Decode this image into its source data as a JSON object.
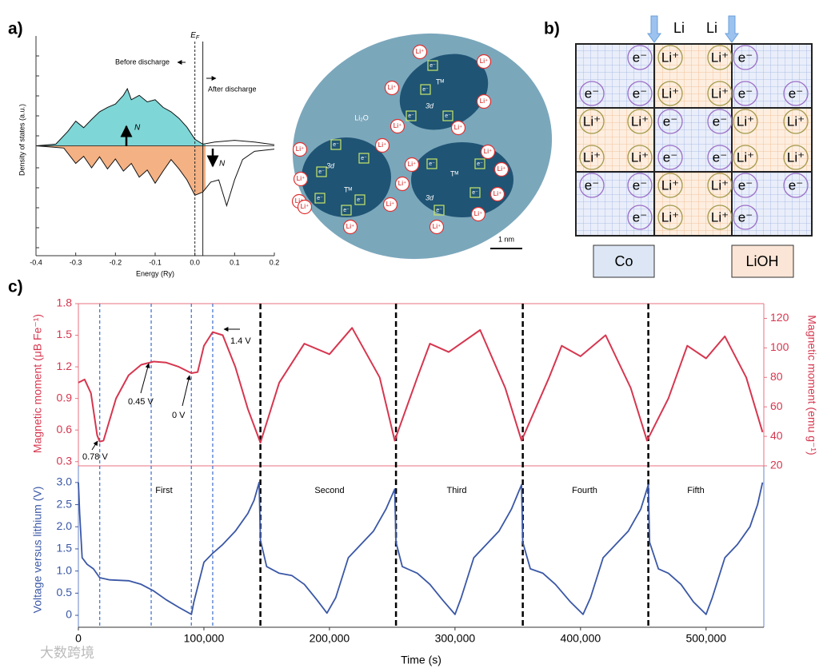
{
  "panel_labels": [
    "a)",
    "b)",
    "c)"
  ],
  "dos_chart": {
    "type": "line",
    "x_label": "Energy (Ry)",
    "y_label": "Density of states (a.u.)",
    "xlim": [
      -0.4,
      0.2
    ],
    "xticks": [
      -0.4,
      -0.3,
      -0.2,
      -0.1,
      {
        "value": 0,
        "label": "0.0"
      },
      0.1,
      0.2
    ],
    "ylim": [
      -10,
      10
    ],
    "fermi_label": "E",
    "fermi_sub": "F",
    "fermi_energy": 0,
    "discharged_energy": 0.02,
    "before_discharge": "Before discharge",
    "after_discharge": "After discharge",
    "spin_label": "N",
    "spin_up": {
      "color": "#7fd6d6",
      "x": [
        -0.4,
        -0.35,
        -0.32,
        -0.3,
        -0.28,
        -0.26,
        -0.24,
        -0.22,
        -0.2,
        -0.18,
        -0.17,
        -0.16,
        -0.14,
        -0.12,
        -0.1,
        -0.08,
        -0.06,
        -0.04,
        -0.02,
        0,
        0.02,
        0.05,
        0.1,
        0.15,
        0.2
      ],
      "values": [
        0,
        0.15,
        1.3,
        2.25,
        1.65,
        2.4,
        3.1,
        3.5,
        3.8,
        4.6,
        5.2,
        4.2,
        4.6,
        4.0,
        4.2,
        3.5,
        3.1,
        2.5,
        1.7,
        0.6,
        0.15,
        0.35,
        0.5,
        0.35,
        0.1
      ]
    },
    "spin_down": {
      "color": "#f4b183",
      "x": [
        -0.4,
        -0.33,
        -0.3,
        -0.28,
        -0.26,
        -0.24,
        -0.22,
        -0.2,
        -0.18,
        -0.16,
        -0.14,
        -0.12,
        -0.1,
        -0.08,
        -0.06,
        -0.04,
        -0.02,
        0,
        0.02,
        0.04,
        0.06,
        0.08,
        0.1,
        0.12,
        0.15,
        0.2
      ],
      "values": [
        0,
        -0.2,
        -1.6,
        -0.95,
        -2,
        -1,
        -2.1,
        -1.2,
        -2.3,
        -1.6,
        -2.85,
        -2.2,
        -3.4,
        -2.3,
        -1.25,
        -2.1,
        -3.1,
        -4.5,
        -4.2,
        -3.3,
        -3.1,
        -5.45,
        -3.1,
        -1.25,
        -0.5,
        -0.3
      ]
    }
  },
  "particle_diagram": {
    "matrix": "Li₂O",
    "metal": "Tᴹ",
    "orbital": "3d",
    "li_ion": "Li⁺",
    "electron": "e⁻",
    "scale_bar": "1 nm"
  },
  "lattice": {
    "arrow_label": "Li",
    "li_ion": "Li⁺",
    "electron": "e⁻",
    "left_box": "Co",
    "right_box": "LiOH"
  },
  "cycling_chart": {
    "type": "line",
    "x_label": "Time (s)",
    "xlim": [
      0,
      546000
    ],
    "xticks": [
      0,
      {
        "value": 100000,
        "label": "100,000"
      },
      {
        "value": 200000,
        "label": "200,000"
      },
      {
        "value": 300000,
        "label": "300,000"
      },
      {
        "value": 400000,
        "label": "400,000"
      },
      {
        "value": 500000,
        "label": "500,000"
      }
    ],
    "cycle_names": [
      "First",
      "Second",
      "Third",
      "Fourth",
      "Fifth"
    ],
    "voltage_notes": [
      "0.78 V",
      "0.45 V",
      "0 V",
      "1.4 V"
    ],
    "marker_lines": [
      17000,
      58000,
      90000,
      107000
    ],
    "cycle_boundaries": [
      145000,
      253000,
      354000,
      454000
    ],
    "magnetic": {
      "y_label": "Magnetic moment (μB Fe⁻¹)",
      "y2_label": "Magnetic moment (emu g⁻¹)",
      "ylim": [
        0.26,
        1.8
      ],
      "yticks": [
        0.3,
        0.6,
        0.9,
        1.2,
        1.5,
        1.8
      ],
      "y2lim": [
        20,
        130
      ],
      "y2ticks": [
        20,
        40,
        60,
        80,
        100,
        120
      ],
      "color": "#d6364f",
      "x": [
        0,
        5000,
        10000,
        15000,
        17000,
        20000,
        30000,
        40000,
        50000,
        60000,
        70000,
        80000,
        90000,
        95000,
        100000,
        107000,
        115000,
        125000,
        135000,
        145000,
        160000,
        180000,
        200000,
        218000,
        240000,
        252000,
        270000,
        280000,
        295000,
        320000,
        340000,
        353000,
        375000,
        385000,
        400000,
        420000,
        440000,
        453000,
        470000,
        485000,
        500000,
        515000,
        532000,
        545000
      ],
      "values": [
        1.05,
        1.08,
        0.95,
        0.55,
        0.49,
        0.5,
        0.9,
        1.12,
        1.22,
        1.25,
        1.24,
        1.2,
        1.14,
        1.15,
        1.4,
        1.53,
        1.5,
        1.2,
        0.8,
        0.48,
        1.05,
        1.42,
        1.32,
        1.57,
        1.1,
        0.5,
        1.1,
        1.42,
        1.34,
        1.55,
        1.0,
        0.5,
        1.1,
        1.4,
        1.3,
        1.5,
        1.0,
        0.5,
        0.9,
        1.4,
        1.28,
        1.49,
        1.1,
        0.58
      ]
    },
    "voltage": {
      "y_label": "Voltage versus lithium (V)",
      "ylim": [
        -0.27,
        3.25
      ],
      "yticks": [
        0,
        0.5,
        {
          "value": 1,
          "label": "1.0"
        },
        1.5,
        {
          "value": 2,
          "label": "2.0"
        },
        2.5,
        {
          "value": 3,
          "label": "3.0"
        }
      ],
      "color": "#3a57a6",
      "x": [
        0,
        1000,
        3000,
        7000,
        12000,
        17000,
        25000,
        40000,
        50000,
        60000,
        70000,
        80000,
        90000,
        92000,
        100000,
        107000,
        115000,
        125000,
        135000,
        140000,
        144000,
        145000,
        150000,
        160000,
        170000,
        180000,
        190000,
        198000,
        205000,
        215000,
        225000,
        235000,
        245000,
        252000,
        253000,
        258000,
        270000,
        280000,
        290000,
        300000,
        305000,
        315000,
        325000,
        335000,
        345000,
        353000,
        354000,
        360000,
        370000,
        380000,
        392000,
        402000,
        408000,
        418000,
        428000,
        438000,
        448000,
        454000,
        455000,
        462000,
        470000,
        480000,
        490000,
        500000,
        505000,
        515000,
        525000,
        535000,
        541000,
        545000
      ],
      "values": [
        3.0,
        2.3,
        1.3,
        1.15,
        1.05,
        0.85,
        0.8,
        0.78,
        0.7,
        0.55,
        0.35,
        0.18,
        0.02,
        0.3,
        1.2,
        1.4,
        1.6,
        1.9,
        2.3,
        2.6,
        3.0,
        1.7,
        1.1,
        0.95,
        0.9,
        0.7,
        0.35,
        0.05,
        0.4,
        1.3,
        1.6,
        1.9,
        2.4,
        2.85,
        1.65,
        1.1,
        0.95,
        0.7,
        0.35,
        0.02,
        0.4,
        1.3,
        1.6,
        1.9,
        2.4,
        2.95,
        1.65,
        1.05,
        0.95,
        0.7,
        0.3,
        0.02,
        0.4,
        1.3,
        1.6,
        1.9,
        2.4,
        2.95,
        1.65,
        1.05,
        0.95,
        0.7,
        0.3,
        0.02,
        0.4,
        1.3,
        1.6,
        2.0,
        2.5,
        3.0
      ]
    }
  },
  "watermark": "大数跨境"
}
